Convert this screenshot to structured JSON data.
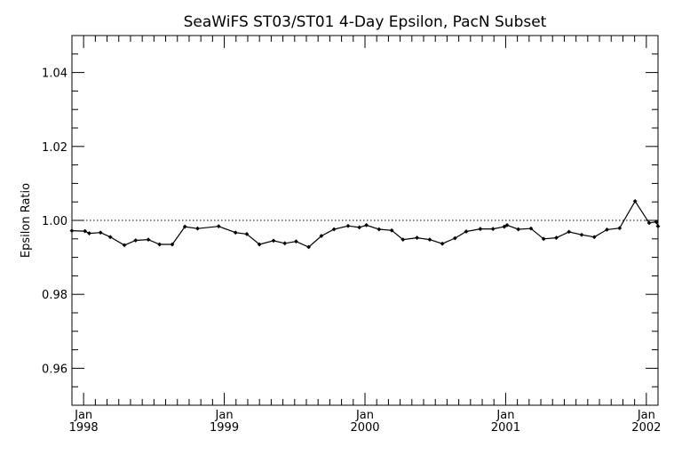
{
  "chart_data": {
    "type": "line",
    "title": "SeaWiFS ST03/ST01 4-Day Epsilon, PacN Subset",
    "ylabel": "Epsilon Ratio",
    "xlabel": "",
    "ylim": [
      0.95,
      1.05
    ],
    "xlim": [
      1997.917,
      2002.083
    ],
    "y_ticks": [
      0.96,
      0.98,
      1.0,
      1.02,
      1.04
    ],
    "y_tick_labels": [
      "0.96",
      "0.98",
      "1.00",
      "1.02",
      "1.04"
    ],
    "x_ticks": [
      {
        "x": 1998.0,
        "month": "Jan",
        "year": "1998"
      },
      {
        "x": 1999.0,
        "month": "Jan",
        "year": "1999"
      },
      {
        "x": 2000.0,
        "month": "Jan",
        "year": "2000"
      },
      {
        "x": 2001.0,
        "month": "Jan",
        "year": "2001"
      },
      {
        "x": 2002.0,
        "month": "Jan",
        "year": "2002"
      }
    ],
    "reference_line": 1.0,
    "grid": false,
    "series": [
      {
        "color": "#000000",
        "marker": "diamond",
        "x": [
          1997.917,
          1998.01,
          1998.04,
          1998.12,
          1998.19,
          1998.29,
          1998.37,
          1998.46,
          1998.54,
          1998.63,
          1998.72,
          1998.81,
          1998.96,
          1999.08,
          1999.16,
          1999.25,
          1999.35,
          1999.43,
          1999.51,
          1999.6,
          1999.69,
          1999.78,
          1999.88,
          1999.96,
          2000.01,
          2000.1,
          2000.19,
          2000.27,
          2000.37,
          2000.46,
          2000.55,
          2000.64,
          2000.72,
          2000.82,
          2000.91,
          2000.99,
          2001.01,
          2001.09,
          2001.18,
          2001.27,
          2001.36,
          2001.45,
          2001.54,
          2001.63,
          2001.72,
          2001.81,
          2001.92,
          2002.02,
          2002.07,
          2002.083
        ],
        "y": [
          0.9972,
          0.9971,
          0.9965,
          0.9967,
          0.9955,
          0.9933,
          0.9946,
          0.9948,
          0.9935,
          0.9935,
          0.9983,
          0.9978,
          0.9984,
          0.9967,
          0.9963,
          0.9935,
          0.9945,
          0.9938,
          0.9943,
          0.9928,
          0.9958,
          0.9976,
          0.9985,
          0.9981,
          0.9987,
          0.9976,
          0.9973,
          0.9948,
          0.9953,
          0.9948,
          0.9937,
          0.9952,
          0.997,
          0.9977,
          0.9977,
          0.9983,
          0.9987,
          0.9976,
          0.9978,
          0.995,
          0.9953,
          0.9969,
          0.9961,
          0.9955,
          0.9975,
          0.9979,
          1.0052,
          0.9993,
          0.9996,
          0.9984
        ]
      }
    ]
  }
}
